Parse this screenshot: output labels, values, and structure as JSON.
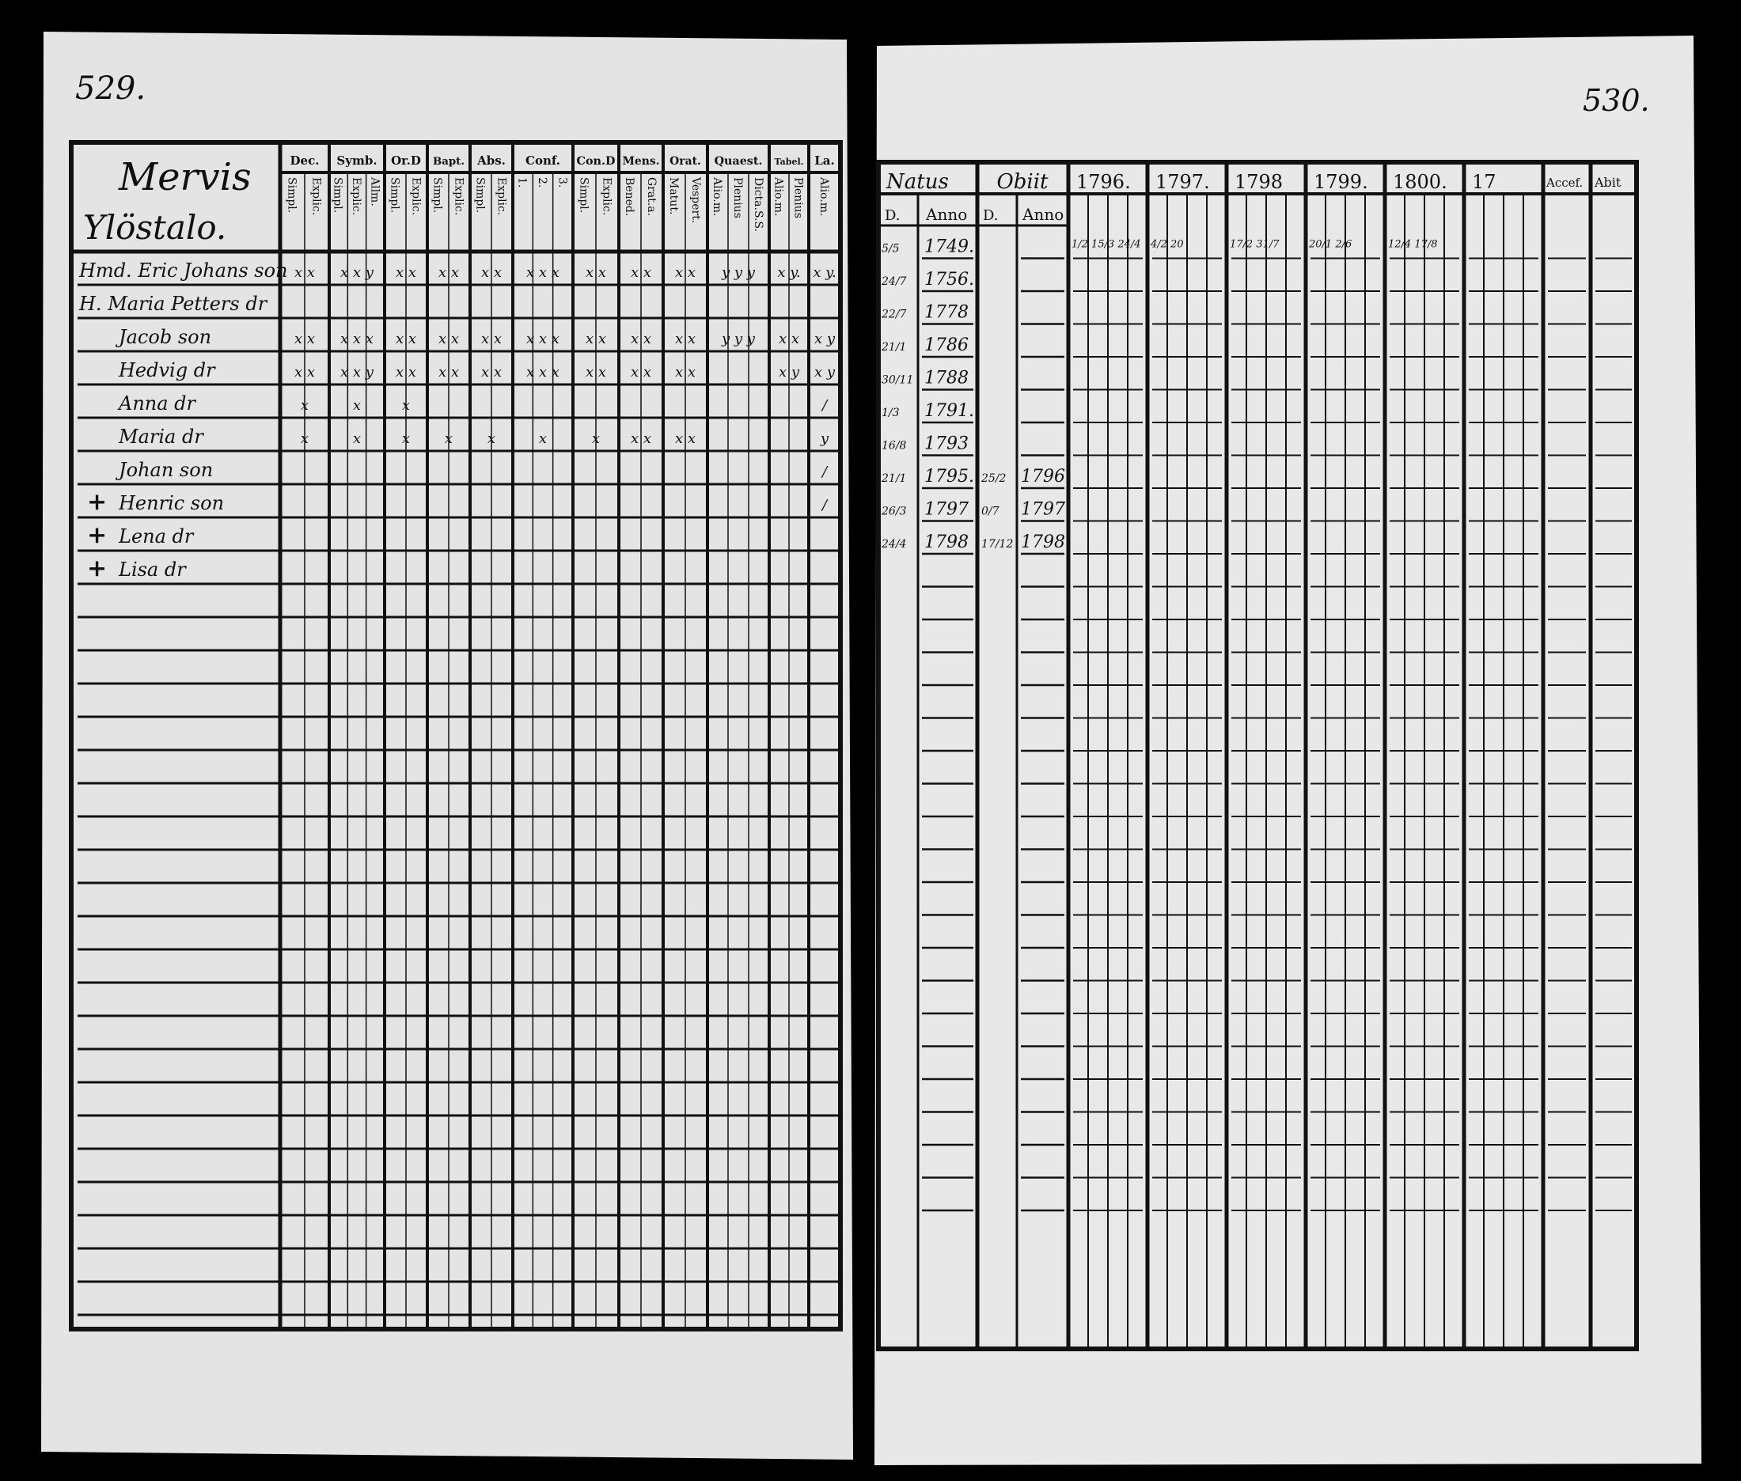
{
  "left_page": {
    "page_number": "529.",
    "title_line1": "Mervis",
    "title_line2": "Ylöstalo.",
    "column_groups": [
      {
        "label": "Dec.",
        "sub": [
          "Simpl.",
          "Explic."
        ]
      },
      {
        "label": "Symb.",
        "sub": [
          "Simpl.",
          "Explic.",
          "Allm."
        ]
      },
      {
        "label": "Or.D",
        "sub": [
          "Simpl.",
          "Explic."
        ]
      },
      {
        "label": "Bapt.",
        "sub": [
          "Simpl.",
          "Explic."
        ]
      },
      {
        "label": "Abs.",
        "sub": [
          "Simpl.",
          "Explic."
        ]
      },
      {
        "label": "Conf.",
        "sub": [
          "1.",
          "2.",
          "3."
        ]
      },
      {
        "label": "Con.D",
        "sub": [
          "Simpl.",
          "Explic."
        ]
      },
      {
        "label": "Mens.",
        "sub": [
          "Bened.",
          "Grat.a."
        ]
      },
      {
        "label": "Orat.",
        "sub": [
          "Matut.",
          "Vespert."
        ]
      },
      {
        "label": "Quaest.",
        "sub": [
          "Alio.m.",
          "Plenius",
          "Dicta.S.S."
        ]
      },
      {
        "label": "Tabel.",
        "sub": [
          "Alio.m.",
          "Plenius"
        ]
      },
      {
        "label": "La.",
        "sub": [
          "Alio.m."
        ]
      }
    ],
    "rows": [
      {
        "prefix": "",
        "name": "Hmd. Eric Johans son",
        "marks": [
          "x x",
          "x x y",
          "x x",
          "x x",
          "x x",
          "x x x",
          "x x",
          "x x",
          "x x",
          "y y y",
          "x y.",
          "x y."
        ]
      },
      {
        "prefix": "",
        "name": "H. Maria Petters dr",
        "marks": [
          "",
          "",
          "",
          "",
          "",
          "",
          "",
          "",
          "",
          "",
          "",
          ""
        ]
      },
      {
        "prefix": "",
        "name": "Jacob son",
        "marks": [
          "x x",
          "x x x",
          "x x",
          "x x",
          "x x",
          "x x x",
          "x x",
          "x x",
          "x x",
          "y y y",
          "x x",
          "x y"
        ]
      },
      {
        "prefix": "",
        "name": "Hedvig dr",
        "marks": [
          "x x",
          "x x y",
          "x x",
          "x x",
          "x x",
          "x x x",
          "x x",
          "x x",
          "x x",
          "",
          "x y",
          "x y"
        ]
      },
      {
        "prefix": "",
        "name": "Anna dr",
        "marks": [
          "x",
          "x",
          "x",
          "",
          "",
          "",
          "",
          "",
          "",
          "",
          "",
          "/"
        ]
      },
      {
        "prefix": "",
        "name": "Maria dr",
        "marks": [
          "x",
          "x",
          "x",
          "x",
          "x",
          "x",
          "x",
          "x x",
          "x x",
          "",
          "",
          "y"
        ]
      },
      {
        "prefix": "",
        "name": "Johan son",
        "marks": [
          "",
          "",
          "",
          "",
          "",
          "",
          "",
          "",
          "",
          "",
          "",
          "/"
        ]
      },
      {
        "prefix": "+",
        "name": "Henric son",
        "marks": [
          "",
          "",
          "",
          "",
          "",
          "",
          "",
          "",
          "",
          "",
          "",
          "/"
        ]
      },
      {
        "prefix": "+",
        "name": "Lena dr",
        "marks": [
          "",
          "",
          "",
          "",
          "",
          "",
          "",
          "",
          "",
          "",
          "",
          ""
        ]
      },
      {
        "prefix": "+",
        "name": "Lisa dr",
        "marks": [
          "",
          "",
          "",
          "",
          "",
          "",
          "",
          "",
          "",
          "",
          "",
          ""
        ]
      }
    ]
  },
  "right_page": {
    "page_number": "530.",
    "headers": {
      "natus": "Natus",
      "obiit": "Obiit",
      "d": "D.",
      "anno": "Anno",
      "years": [
        "1796.",
        "1797.",
        "1798",
        "1799.",
        "1800.",
        "17"
      ],
      "accef": "Accef.",
      "abit": "Abit"
    },
    "rows": [
      {
        "natus_d": "5/5",
        "natus_anno": "1749.",
        "obiit_d": "",
        "obiit_anno": ""
      },
      {
        "natus_d": "24/7",
        "natus_anno": "1756.",
        "obiit_d": "",
        "obiit_anno": ""
      },
      {
        "natus_d": "22/7",
        "natus_anno": "1778",
        "obiit_d": "",
        "obiit_anno": ""
      },
      {
        "natus_d": "21/1",
        "natus_anno": "1786",
        "obiit_d": "",
        "obiit_anno": ""
      },
      {
        "natus_d": "30/11",
        "natus_anno": "1788",
        "obiit_d": "",
        "obiit_anno": ""
      },
      {
        "natus_d": "1/3",
        "natus_anno": "1791.",
        "obiit_d": "",
        "obiit_anno": ""
      },
      {
        "natus_d": "16/8",
        "natus_anno": "1793",
        "obiit_d": "",
        "obiit_anno": ""
      },
      {
        "natus_d": "21/1",
        "natus_anno": "1795.",
        "obiit_d": "25/2",
        "obiit_anno": "1796"
      },
      {
        "natus_d": "26/3",
        "natus_anno": "1797",
        "obiit_d": "0/7",
        "obiit_anno": "1797"
      },
      {
        "natus_d": "24/4",
        "natus_anno": "1798",
        "obiit_d": "17/12",
        "obiit_anno": "1798"
      }
    ],
    "year_notes": [
      {
        "row": 0,
        "col": 0,
        "text": "1/2 15/3 24/4"
      },
      {
        "row": 0,
        "col": 1,
        "text": "4/2 20"
      },
      {
        "row": 0,
        "col": 2,
        "text": "17/2 31/7"
      },
      {
        "row": 0,
        "col": 3,
        "text": "20/1 2/6"
      },
      {
        "row": 0,
        "col": 4,
        "text": "12/4 17/8"
      }
    ]
  },
  "colors": {
    "paper": "#e6e6e6",
    "ink": "#111111",
    "background": "#000000"
  }
}
